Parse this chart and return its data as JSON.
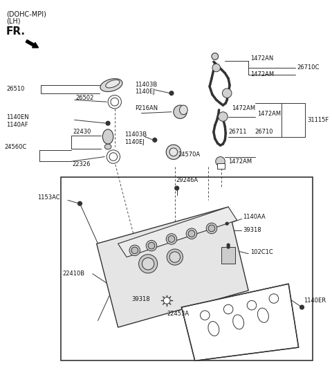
{
  "bg_color": "#ffffff",
  "line_color": "#333333",
  "text_color": "#111111",
  "title1": "(DOHC-MPI)",
  "title2": "(LH)",
  "fr_text": "FR.",
  "figsize": [
    4.8,
    5.42
  ],
  "dpi": 100
}
